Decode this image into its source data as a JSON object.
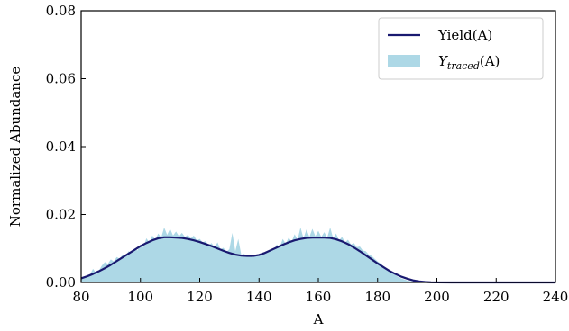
{
  "chart_data": {
    "type": "area",
    "xlabel": "A",
    "ylabel": "Normalized Abundance",
    "xlim": [
      80,
      240
    ],
    "ylim": [
      0,
      0.08
    ],
    "x_ticks": [
      "80",
      "100",
      "120",
      "140",
      "160",
      "180",
      "200",
      "220",
      "240"
    ],
    "y_ticks": [
      "0.00",
      "0.02",
      "0.04",
      "0.06",
      "0.08"
    ],
    "legend_position": "top-right",
    "grid": false,
    "series": [
      {
        "name": "Yield(A)",
        "kind": "line",
        "color": "#191970",
        "x": [
          80,
          82,
          84,
          86,
          88,
          90,
          92,
          94,
          96,
          98,
          100,
          102,
          104,
          106,
          108,
          110,
          112,
          114,
          116,
          118,
          120,
          122,
          124,
          126,
          128,
          130,
          132,
          134,
          136,
          138,
          140,
          142,
          144,
          146,
          148,
          150,
          152,
          154,
          156,
          158,
          160,
          162,
          164,
          166,
          168,
          170,
          172,
          174,
          176,
          178,
          180,
          182,
          184,
          186,
          188,
          190,
          192,
          194,
          196,
          198,
          200,
          205,
          210,
          220,
          230,
          240
        ],
        "y": [
          0.0012,
          0.0018,
          0.0025,
          0.0033,
          0.0042,
          0.0052,
          0.0063,
          0.0074,
          0.0085,
          0.0096,
          0.0107,
          0.0116,
          0.0124,
          0.013,
          0.0133,
          0.0133,
          0.0132,
          0.0131,
          0.0128,
          0.0124,
          0.0119,
          0.0113,
          0.0107,
          0.01,
          0.0093,
          0.0087,
          0.0082,
          0.0079,
          0.0078,
          0.0078,
          0.0081,
          0.0087,
          0.0095,
          0.0103,
          0.0111,
          0.0118,
          0.0124,
          0.0128,
          0.0131,
          0.0132,
          0.0132,
          0.0132,
          0.0131,
          0.0127,
          0.0121,
          0.0113,
          0.0103,
          0.0092,
          0.008,
          0.0068,
          0.0056,
          0.0045,
          0.0034,
          0.0025,
          0.0017,
          0.0011,
          0.0006,
          0.0003,
          0.00015,
          5e-05,
          2e-05,
          0,
          0,
          0,
          0,
          0
        ]
      },
      {
        "name": "Y_traced(A)",
        "kind": "area",
        "color": "#add8e6",
        "x": [
          80,
          81,
          82,
          83,
          84,
          85,
          86,
          87,
          88,
          89,
          90,
          91,
          92,
          93,
          94,
          95,
          96,
          97,
          98,
          99,
          100,
          101,
          102,
          103,
          104,
          105,
          106,
          107,
          108,
          109,
          110,
          111,
          112,
          113,
          114,
          115,
          116,
          117,
          118,
          119,
          120,
          121,
          122,
          123,
          124,
          125,
          126,
          127,
          128,
          129,
          130,
          131,
          132,
          133,
          134,
          135,
          136,
          137,
          138,
          139,
          140,
          141,
          142,
          143,
          144,
          145,
          146,
          147,
          148,
          149,
          150,
          151,
          152,
          153,
          154,
          155,
          156,
          157,
          158,
          159,
          160,
          161,
          162,
          163,
          164,
          165,
          166,
          167,
          168,
          169,
          170,
          171,
          172,
          173,
          174,
          175,
          176,
          177,
          178,
          179,
          180,
          181,
          182,
          183,
          184,
          185,
          186,
          187,
          188,
          189,
          190,
          191,
          192,
          193,
          194,
          195,
          196,
          197,
          198,
          199,
          200
        ],
        "y": [
          0.001,
          0.0015,
          0.002,
          0.0024,
          0.004,
          0.0028,
          0.0035,
          0.005,
          0.006,
          0.0055,
          0.0068,
          0.0062,
          0.0075,
          0.007,
          0.0082,
          0.0078,
          0.0092,
          0.0086,
          0.01,
          0.0094,
          0.0112,
          0.0104,
          0.013,
          0.0118,
          0.0138,
          0.0126,
          0.0144,
          0.0132,
          0.0162,
          0.014,
          0.0158,
          0.0138,
          0.015,
          0.0136,
          0.0146,
          0.0134,
          0.014,
          0.013,
          0.0138,
          0.0124,
          0.0128,
          0.0118,
          0.0122,
          0.011,
          0.0116,
          0.0104,
          0.0118,
          0.0098,
          0.0102,
          0.009,
          0.0098,
          0.0146,
          0.0092,
          0.0128,
          0.0082,
          0.0084,
          0.0076,
          0.0078,
          0.0074,
          0.008,
          0.0078,
          0.0082,
          0.0086,
          0.0088,
          0.0094,
          0.0096,
          0.0112,
          0.0104,
          0.0128,
          0.0114,
          0.0132,
          0.012,
          0.0142,
          0.0126,
          0.0162,
          0.013,
          0.0156,
          0.0134,
          0.0158,
          0.0136,
          0.0152,
          0.0134,
          0.0148,
          0.0132,
          0.0162,
          0.013,
          0.0144,
          0.0124,
          0.0134,
          0.0118,
          0.0126,
          0.0112,
          0.0116,
          0.0104,
          0.0106,
          0.0094,
          0.0092,
          0.0082,
          0.0078,
          0.007,
          0.0062,
          0.0056,
          0.0048,
          0.0042,
          0.0035,
          0.0028,
          0.0022,
          0.0016,
          0.0012,
          0.0009,
          0.0006,
          0.0004,
          0.0003,
          0.0002,
          0.0001,
          6e-05,
          3e-05,
          2e-05,
          1e-05,
          0,
          0
        ]
      }
    ]
  },
  "legend": {
    "items": [
      {
        "label": "Yield(A)",
        "swatch": "line",
        "color": "#191970"
      },
      {
        "label_main": "Y",
        "label_sub": "traced",
        "label_tail": "(A)",
        "swatch": "patch",
        "color": "#add8e6"
      }
    ]
  }
}
